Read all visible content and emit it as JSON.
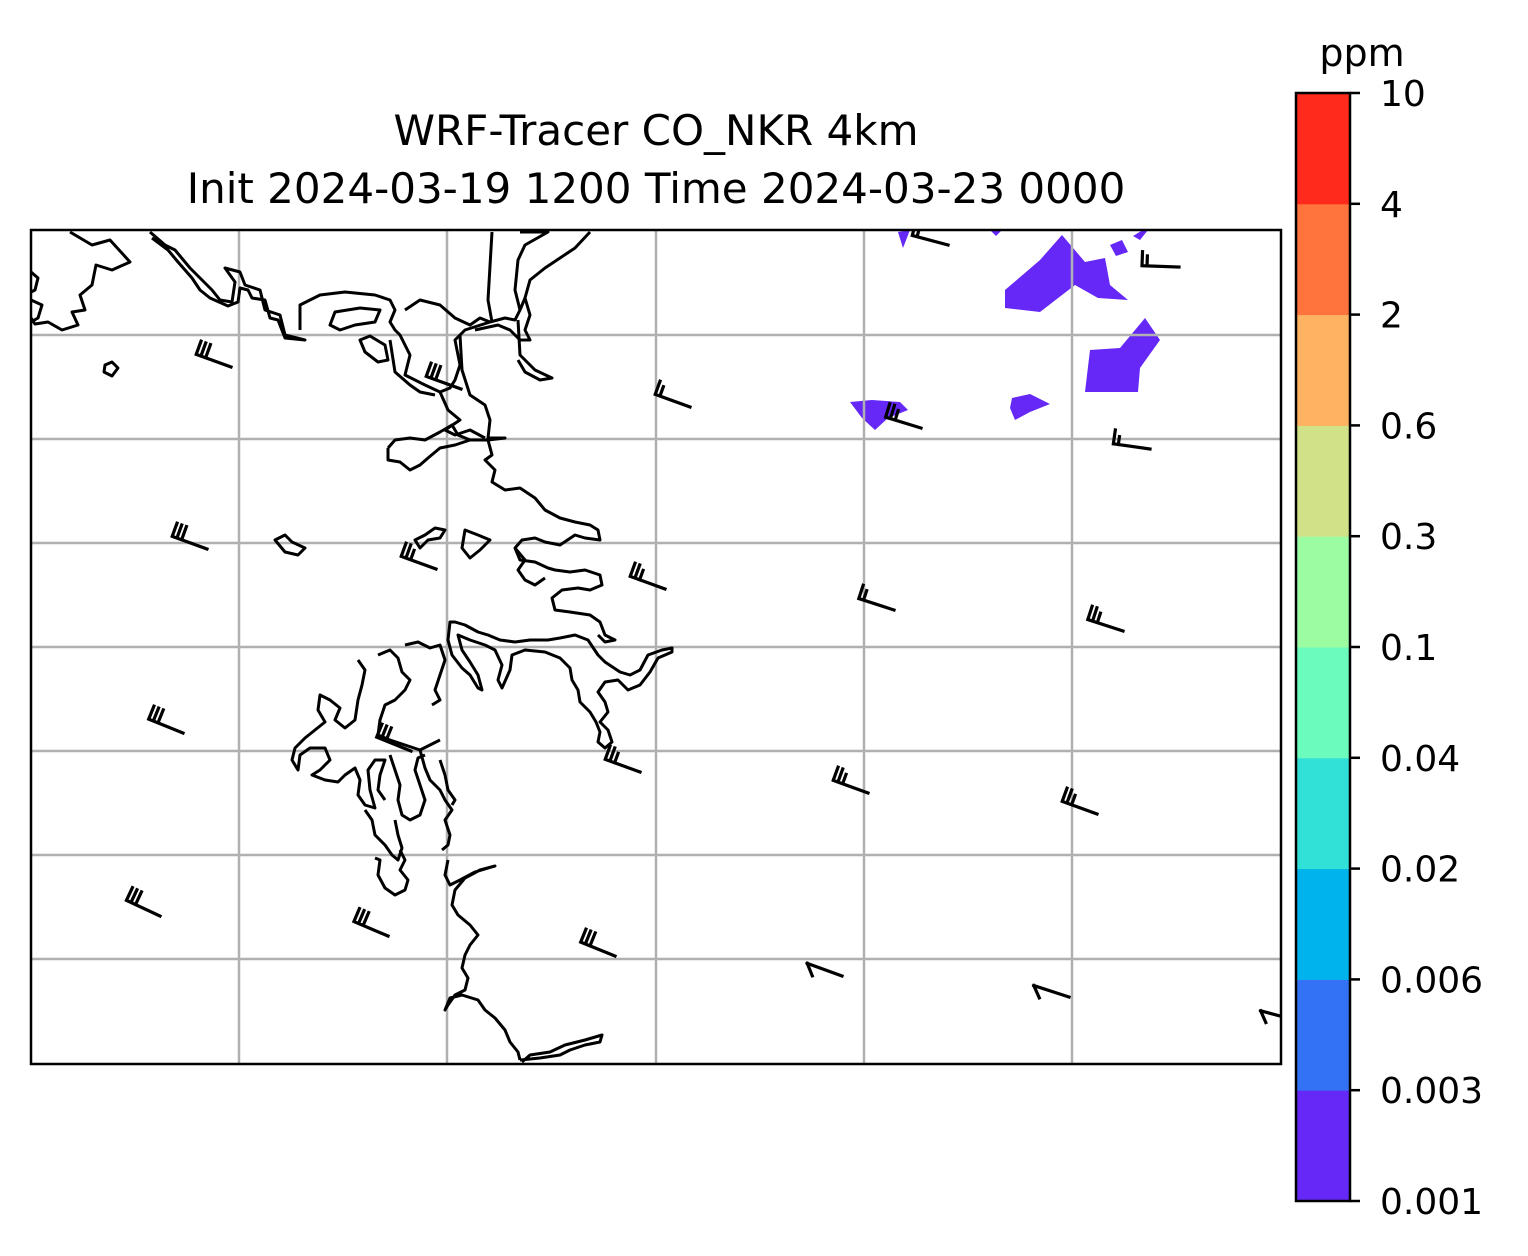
{
  "map": {
    "title_line1": "WRF-Tracer CO_NKR 4km",
    "title_line2": "Init 2024-03-19 1200 Time 2024-03-23 0000",
    "units": "ppm",
    "colorbar": {
      "levels": [
        "0.001",
        "0.003",
        "0.006",
        "0.02",
        "0.04",
        "0.1",
        "0.3",
        "0.6",
        "2",
        "4",
        "10"
      ],
      "colors": [
        "#6528f7",
        "#3372f4",
        "#00b3ed",
        "#31e0d6",
        "#6afbbd",
        "#9cfca2",
        "#d1e187",
        "#ffb262",
        "#ff733d",
        "#ff2a1b"
      ]
    },
    "tracer_color": "#6528f7",
    "gridlines": "on",
    "wind_barb_color": "#000000"
  }
}
